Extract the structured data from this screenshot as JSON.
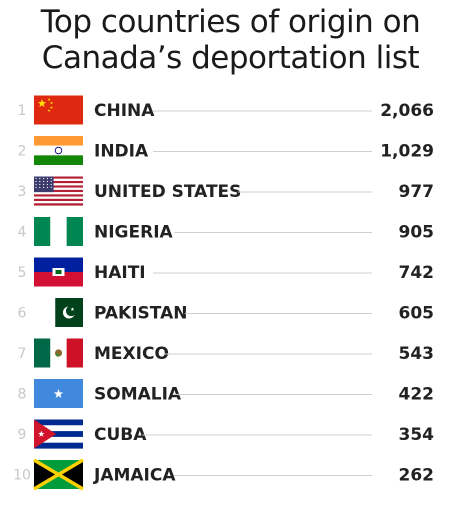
{
  "title_line1": "Top countries of origin on",
  "title_line2": "Canada’s deportation list",
  "chart_data": {
    "type": "bar",
    "title": "Top countries of origin on Canada’s deportation list",
    "categories": [
      "CHINA",
      "INDIA",
      "UNITED STATES",
      "NIGERIA",
      "HAITI",
      "PAKISTAN",
      "MEXICO",
      "SOMALIA",
      "CUBA",
      "JAMAICA"
    ],
    "values": [
      2066,
      1029,
      977,
      905,
      742,
      605,
      543,
      422,
      354,
      262
    ],
    "value_labels": [
      "2,066",
      "1,029",
      "977",
      "905",
      "742",
      "605",
      "543",
      "422",
      "354",
      "262"
    ],
    "ranks": [
      "1",
      "2",
      "3",
      "4",
      "5",
      "6",
      "7",
      "8",
      "9",
      "10"
    ],
    "flag_icons": [
      "china-flag-icon",
      "india-flag-icon",
      "united-states-flag-icon",
      "nigeria-flag-icon",
      "haiti-flag-icon",
      "pakistan-flag-icon",
      "mexico-flag-icon",
      "somalia-flag-icon",
      "cuba-flag-icon",
      "jamaica-flag-icon"
    ],
    "colors": {
      "rank_text": "#c8c8c8",
      "leader_line": "#cfcfcf",
      "label_text": "#222222"
    }
  }
}
